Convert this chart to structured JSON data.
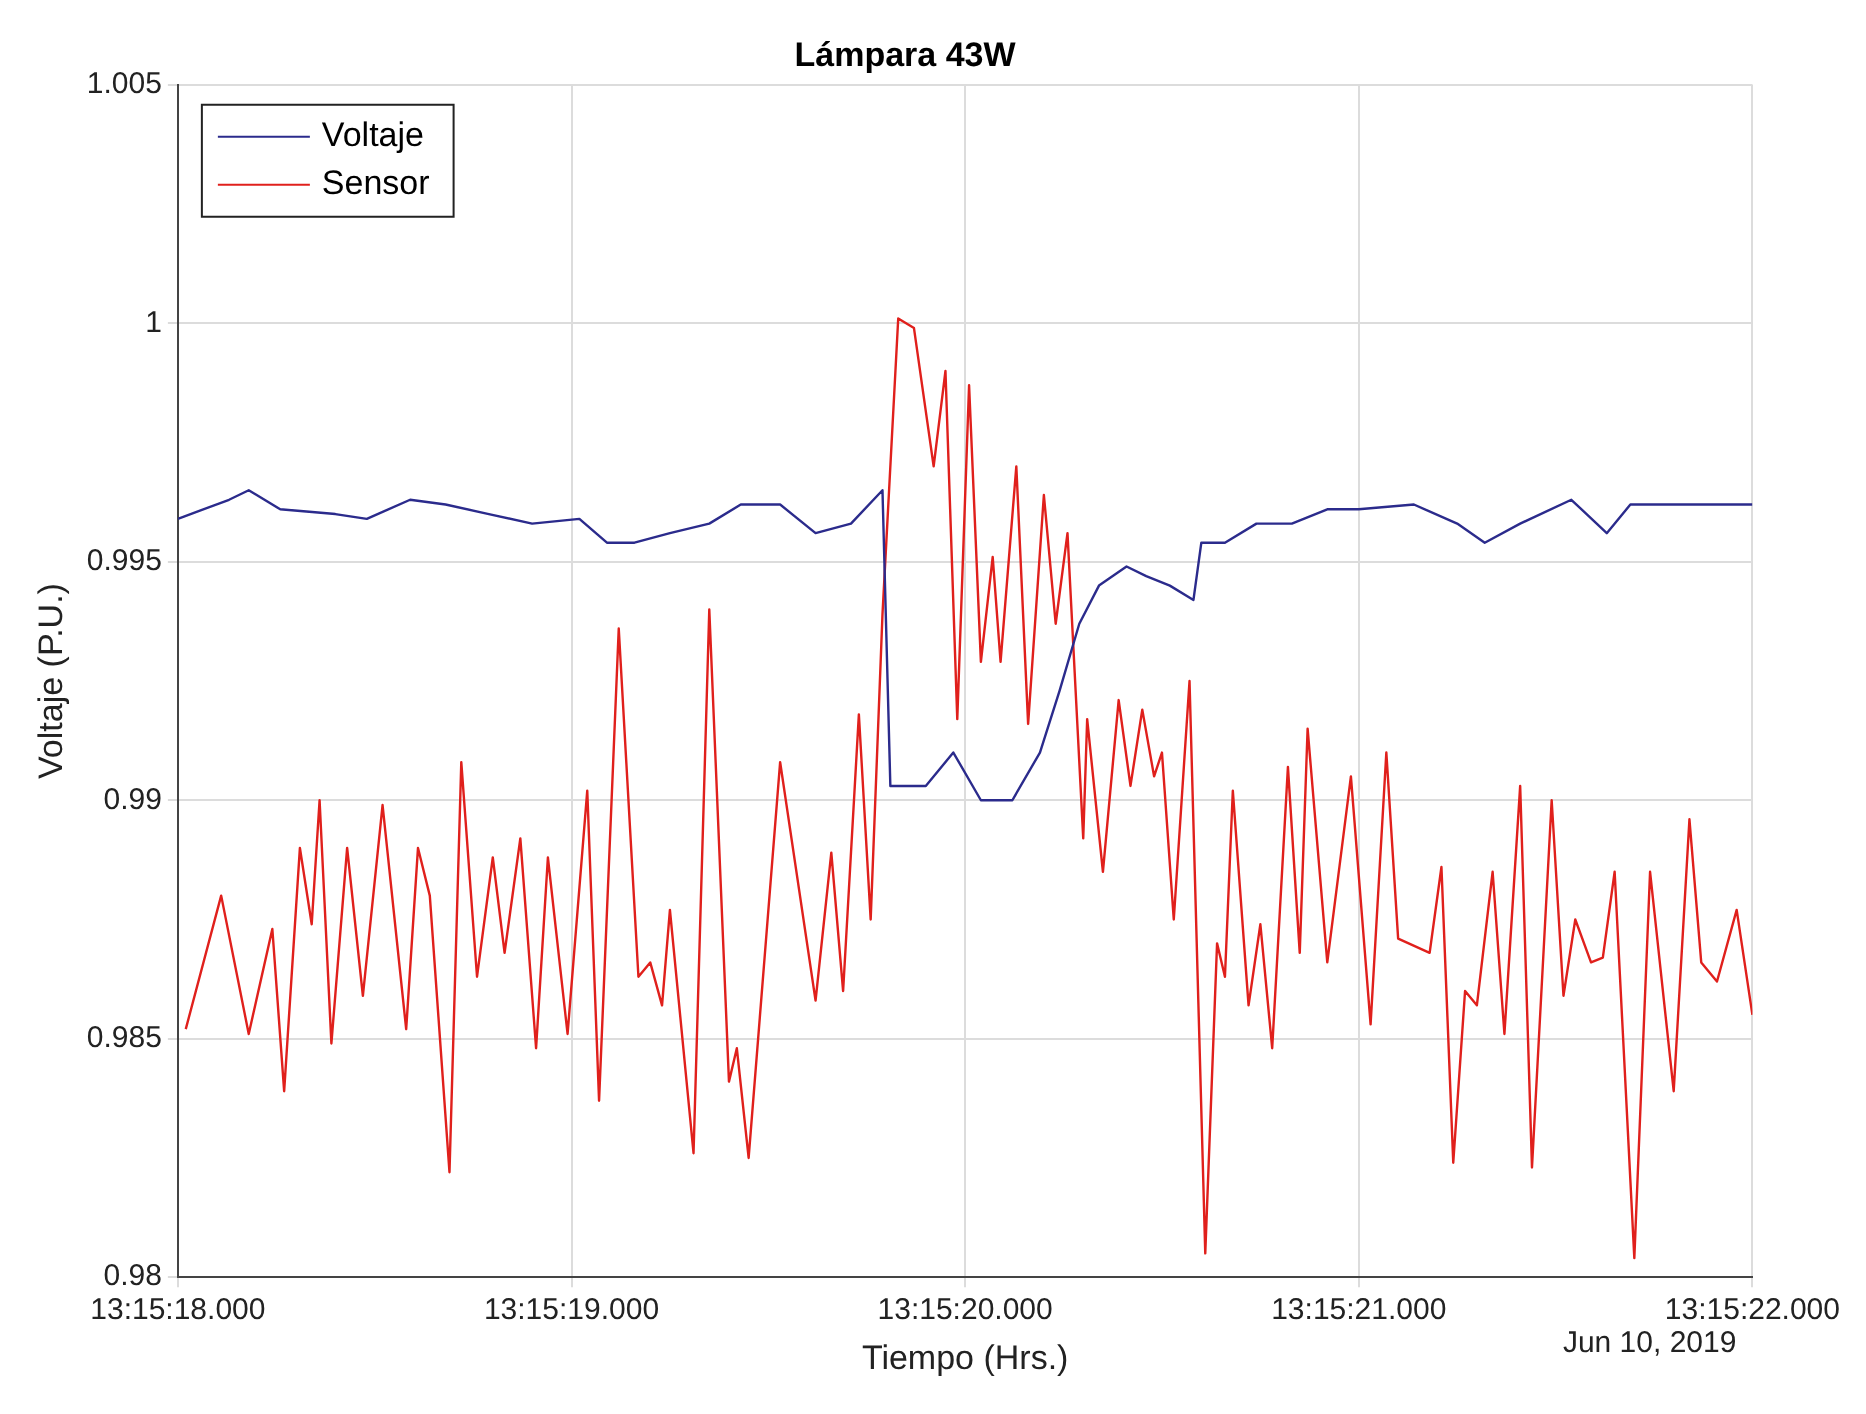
{
  "chart_data": {
    "type": "line",
    "title": "Lámpara 43W",
    "xlabel": "Tiempo (Hrs.)",
    "ylabel": "Voltaje (P.U.)",
    "annotations": [
      "Jun 10, 2019"
    ],
    "xlim": [
      "2019-06-10T13:15:18",
      "2019-06-10T13:15:22"
    ],
    "xticks": [
      {
        "value": "2019-06-10T13:15:18",
        "label": "13:15:18.000"
      },
      {
        "value": "2019-06-10T13:15:19",
        "label": "13:15:19.000"
      },
      {
        "value": "2019-06-10T13:15:20",
        "label": "13:15:20.000"
      },
      {
        "value": "2019-06-10T13:15:21",
        "label": "13:15:21.000"
      },
      {
        "value": "2019-06-10T13:15:22",
        "label": "13:15:22.000"
      }
    ],
    "ylim": [
      0.98,
      1.005
    ],
    "yticks": [
      0.98,
      0.985,
      0.99,
      0.995,
      1,
      1.005
    ],
    "grid": true,
    "legend": "top left",
    "marker": "none",
    "line_style": "solid",
    "series": [
      {
        "name": "Voltaje",
        "color": "#2b2b8c",
        "x": [
          "2019-06-10T13:15:18.00",
          "2019-06-10T13:15:18.13",
          "2019-06-10T13:15:18.18",
          "2019-06-10T13:15:18.26",
          "2019-06-10T13:15:18.40",
          "2019-06-10T13:15:18.48",
          "2019-06-10T13:15:18.59",
          "2019-06-10T13:15:18.68",
          "2019-06-10T13:15:18.79",
          "2019-06-10T13:15:18.90",
          "2019-06-10T13:15:19.02",
          "2019-06-10T13:15:19.09",
          "2019-06-10T13:15:19.16",
          "2019-06-10T13:15:19.25",
          "2019-06-10T13:15:19.35",
          "2019-06-10T13:15:19.43",
          "2019-06-10T13:15:19.53",
          "2019-06-10T13:15:19.62",
          "2019-06-10T13:15:19.71",
          "2019-06-10T13:15:19.79",
          "2019-06-10T13:15:19.81",
          "2019-06-10T13:15:19.90",
          "2019-06-10T13:15:19.97",
          "2019-06-10T13:15:20.04",
          "2019-06-10T13:15:20.12",
          "2019-06-10T13:15:20.19",
          "2019-06-10T13:15:20.24",
          "2019-06-10T13:15:20.29",
          "2019-06-10T13:15:20.34",
          "2019-06-10T13:15:20.41",
          "2019-06-10T13:15:20.46",
          "2019-06-10T13:15:20.52",
          "2019-06-10T13:15:20.58",
          "2019-06-10T13:15:20.60",
          "2019-06-10T13:15:20.66",
          "2019-06-10T13:15:20.74",
          "2019-06-10T13:15:20.83",
          "2019-06-10T13:15:20.92",
          "2019-06-10T13:15:21.00",
          "2019-06-10T13:15:21.14",
          "2019-06-10T13:15:21.25",
          "2019-06-10T13:15:21.32",
          "2019-06-10T13:15:21.41",
          "2019-06-10T13:15:21.54",
          "2019-06-10T13:15:21.63",
          "2019-06-10T13:15:21.69",
          "2019-06-10T13:15:21.84",
          "2019-06-10T13:15:22.00"
        ],
        "values": [
          0.9959,
          0.9963,
          0.9965,
          0.9961,
          0.996,
          0.9959,
          0.9963,
          0.9962,
          0.996,
          0.9958,
          0.9959,
          0.9954,
          0.9954,
          0.9956,
          0.9958,
          0.9962,
          0.9962,
          0.9956,
          0.9958,
          0.9965,
          0.9903,
          0.9903,
          0.991,
          0.99,
          0.99,
          0.991,
          0.9923,
          0.9937,
          0.9945,
          0.9949,
          0.9947,
          0.9945,
          0.9942,
          0.9954,
          0.9954,
          0.9958,
          0.9958,
          0.9961,
          0.9961,
          0.9962,
          0.9958,
          0.9954,
          0.9958,
          0.9963,
          0.9956,
          0.9962,
          0.9962,
          0.9962
        ]
      },
      {
        "name": "Sensor",
        "color": "#e0201c",
        "x": [
          "2019-06-10T13:15:18.02",
          "2019-06-10T13:15:18.11",
          "2019-06-10T13:15:18.18",
          "2019-06-10T13:15:18.24",
          "2019-06-10T13:15:18.27",
          "2019-06-10T13:15:18.31",
          "2019-06-10T13:15:18.34",
          "2019-06-10T13:15:18.36",
          "2019-06-10T13:15:18.39",
          "2019-06-10T13:15:18.43",
          "2019-06-10T13:15:18.47",
          "2019-06-10T13:15:18.52",
          "2019-06-10T13:15:18.58",
          "2019-06-10T13:15:18.61",
          "2019-06-10T13:15:18.64",
          "2019-06-10T13:15:18.69",
          "2019-06-10T13:15:18.72",
          "2019-06-10T13:15:18.76",
          "2019-06-10T13:15:18.80",
          "2019-06-10T13:15:18.83",
          "2019-06-10T13:15:18.87",
          "2019-06-10T13:15:18.91",
          "2019-06-10T13:15:18.94",
          "2019-06-10T13:15:18.99",
          "2019-06-10T13:15:19.04",
          "2019-06-10T13:15:19.07",
          "2019-06-10T13:15:19.12",
          "2019-06-10T13:15:19.17",
          "2019-06-10T13:15:19.20",
          "2019-06-10T13:15:19.23",
          "2019-06-10T13:15:19.25",
          "2019-06-10T13:15:19.31",
          "2019-06-10T13:15:19.35",
          "2019-06-10T13:15:19.40",
          "2019-06-10T13:15:19.42",
          "2019-06-10T13:15:19.45",
          "2019-06-10T13:15:19.53",
          "2019-06-10T13:15:19.62",
          "2019-06-10T13:15:19.66",
          "2019-06-10T13:15:19.69",
          "2019-06-10T13:15:19.73",
          "2019-06-10T13:15:19.76",
          "2019-06-10T13:15:19.79",
          "2019-06-10T13:15:19.83",
          "2019-06-10T13:15:19.87",
          "2019-06-10T13:15:19.92",
          "2019-06-10T13:15:19.95",
          "2019-06-10T13:15:19.98",
          "2019-06-10T13:15:20.01",
          "2019-06-10T13:15:20.04",
          "2019-06-10T13:15:20.07",
          "2019-06-10T13:15:20.09",
          "2019-06-10T13:15:20.13",
          "2019-06-10T13:15:20.16",
          "2019-06-10T13:15:20.20",
          "2019-06-10T13:15:20.23",
          "2019-06-10T13:15:20.26",
          "2019-06-10T13:15:20.30",
          "2019-06-10T13:15:20.31",
          "2019-06-10T13:15:20.35",
          "2019-06-10T13:15:20.39",
          "2019-06-10T13:15:20.42",
          "2019-06-10T13:15:20.45",
          "2019-06-10T13:15:20.48",
          "2019-06-10T13:15:20.50",
          "2019-06-10T13:15:20.53",
          "2019-06-10T13:15:20.57",
          "2019-06-10T13:15:20.61",
          "2019-06-10T13:15:20.64",
          "2019-06-10T13:15:20.66",
          "2019-06-10T13:15:20.68",
          "2019-06-10T13:15:20.72",
          "2019-06-10T13:15:20.75",
          "2019-06-10T13:15:20.78",
          "2019-06-10T13:15:20.82",
          "2019-06-10T13:15:20.85",
          "2019-06-10T13:15:20.87",
          "2019-06-10T13:15:20.92",
          "2019-06-10T13:15:20.98",
          "2019-06-10T13:15:21.03",
          "2019-06-10T13:15:21.07",
          "2019-06-10T13:15:21.10",
          "2019-06-10T13:15:21.18",
          "2019-06-10T13:15:21.21",
          "2019-06-10T13:15:21.24",
          "2019-06-10T13:15:21.27",
          "2019-06-10T13:15:21.30",
          "2019-06-10T13:15:21.34",
          "2019-06-10T13:15:21.37",
          "2019-06-10T13:15:21.41",
          "2019-06-10T13:15:21.44",
          "2019-06-10T13:15:21.49",
          "2019-06-10T13:15:21.52",
          "2019-06-10T13:15:21.55",
          "2019-06-10T13:15:21.59",
          "2019-06-10T13:15:21.62",
          "2019-06-10T13:15:21.65",
          "2019-06-10T13:15:21.70",
          "2019-06-10T13:15:21.74",
          "2019-06-10T13:15:21.80",
          "2019-06-10T13:15:21.84",
          "2019-06-10T13:15:21.87",
          "2019-06-10T13:15:21.91",
          "2019-06-10T13:15:21.96",
          "2019-06-10T13:15:22.00"
        ],
        "values": [
          0.9852,
          0.988,
          0.9851,
          0.9873,
          0.9839,
          0.989,
          0.9874,
          0.99,
          0.9849,
          0.989,
          0.9859,
          0.9899,
          0.9852,
          0.989,
          0.988,
          0.9822,
          0.9908,
          0.9863,
          0.9888,
          0.9868,
          0.9892,
          0.9848,
          0.9888,
          0.9851,
          0.9902,
          0.9837,
          0.9936,
          0.9863,
          0.9866,
          0.9857,
          0.9877,
          0.9826,
          0.994,
          0.9841,
          0.9848,
          0.9825,
          0.9908,
          0.9858,
          0.9889,
          0.986,
          0.9918,
          0.9875,
          0.9939,
          1.0001,
          0.9999,
          0.997,
          0.999,
          0.9917,
          0.9987,
          0.9929,
          0.9951,
          0.9929,
          0.997,
          0.9916,
          0.9964,
          0.9937,
          0.9956,
          0.9892,
          0.9917,
          0.9885,
          0.9921,
          0.9903,
          0.9919,
          0.9905,
          0.991,
          0.9875,
          0.9925,
          0.9805,
          0.987,
          0.9863,
          0.9902,
          0.9857,
          0.9874,
          0.9848,
          0.9907,
          0.9868,
          0.9915,
          0.9866,
          0.9905,
          0.9853,
          0.991,
          0.9871,
          0.9868,
          0.9886,
          0.9824,
          0.986,
          0.9857,
          0.9885,
          0.9851,
          0.9903,
          0.9823,
          0.99,
          0.9859,
          0.9875,
          0.9866,
          0.9867,
          0.9885,
          0.9804,
          0.9885,
          0.9839,
          0.9896,
          0.9866,
          0.9862,
          0.9877,
          0.9855
        ]
      }
    ]
  }
}
